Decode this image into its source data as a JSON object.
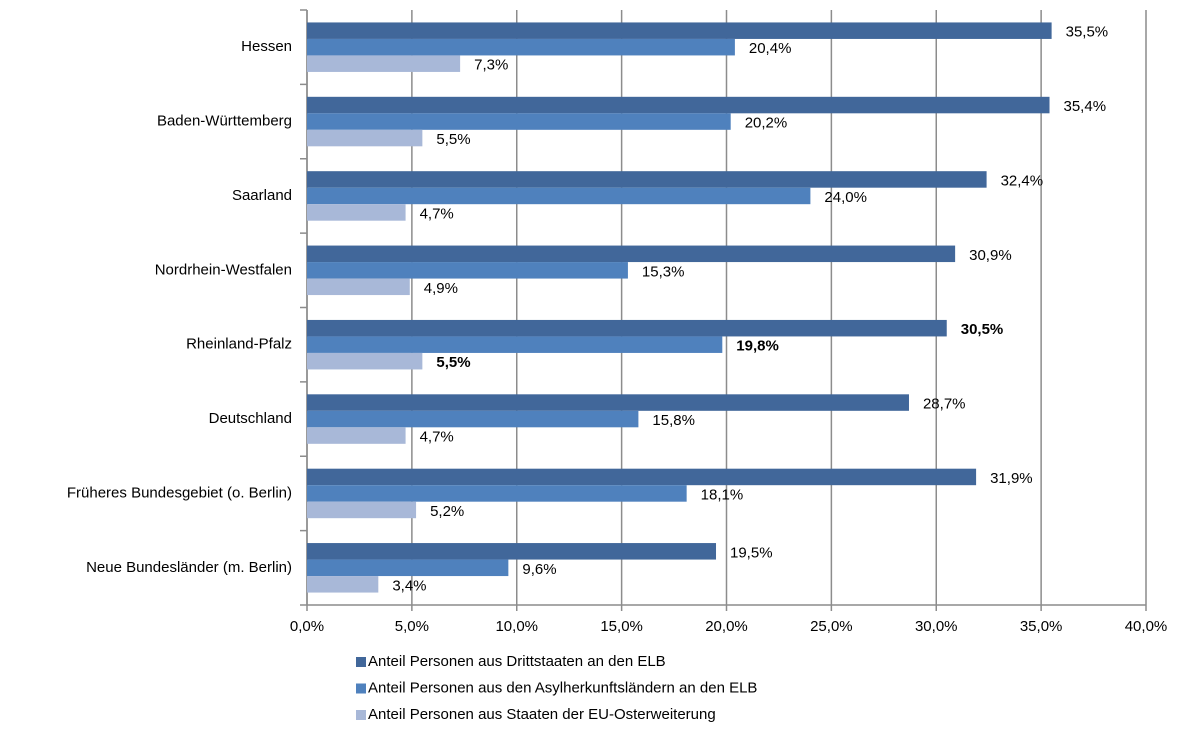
{
  "chart_data": {
    "type": "bar",
    "orientation": "horizontal",
    "categories": [
      "Hessen",
      "Baden-Württemberg",
      "Saarland",
      "Nordrhein-Westfalen",
      "Rheinland-Pfalz",
      "Deutschland",
      "Früheres Bundesgebiet (o. Berlin)",
      "Neue Bundesländer (m. Berlin)"
    ],
    "series": [
      {
        "name": "Anteil Personen aus Drittstaaten an den ELB",
        "color": "#41679a",
        "values": [
          35.5,
          35.4,
          32.4,
          30.9,
          30.5,
          28.7,
          31.9,
          19.5
        ],
        "value_labels": [
          "35,5%",
          "35,4%",
          "32,4%",
          "30,9%",
          "30,5%",
          "28,7%",
          "31,9%",
          "19,5%"
        ]
      },
      {
        "name": "Anteil Personen aus den Asylherkunftsländern an den ELB",
        "color": "#4f81bd",
        "values": [
          20.4,
          20.2,
          24.0,
          15.3,
          19.8,
          15.8,
          18.1,
          9.6
        ],
        "value_labels": [
          "20,4%",
          "20,2%",
          "24,0%",
          "15,3%",
          "19,8%",
          "15,8%",
          "18,1%",
          "9,6%"
        ]
      },
      {
        "name": "Anteil Personen aus Staaten der EU-Osterweiterung",
        "color": "#a8b8d8",
        "values": [
          7.3,
          5.5,
          4.7,
          4.9,
          5.5,
          4.7,
          5.2,
          3.4
        ],
        "value_labels": [
          "7,3%",
          "5,5%",
          "4,7%",
          "4,9%",
          "5,5%",
          "4,7%",
          "5,2%",
          "3,4%"
        ]
      }
    ],
    "bold_categories": [
      "Rheinland-Pfalz"
    ],
    "xlim": [
      0,
      40
    ],
    "xticks": [
      {
        "value": 0,
        "label": "0,0%"
      },
      {
        "value": 5,
        "label": "5,0%"
      },
      {
        "value": 10,
        "label": "10,0%"
      },
      {
        "value": 15,
        "label": "15,0%"
      },
      {
        "value": 20,
        "label": "20,0%"
      },
      {
        "value": 25,
        "label": "25,0%"
      },
      {
        "value": 30,
        "label": "30,0%"
      },
      {
        "value": 35,
        "label": "35,0%"
      },
      {
        "value": 40,
        "label": "40,0%"
      }
    ],
    "grid": true,
    "legend": "bottom"
  }
}
